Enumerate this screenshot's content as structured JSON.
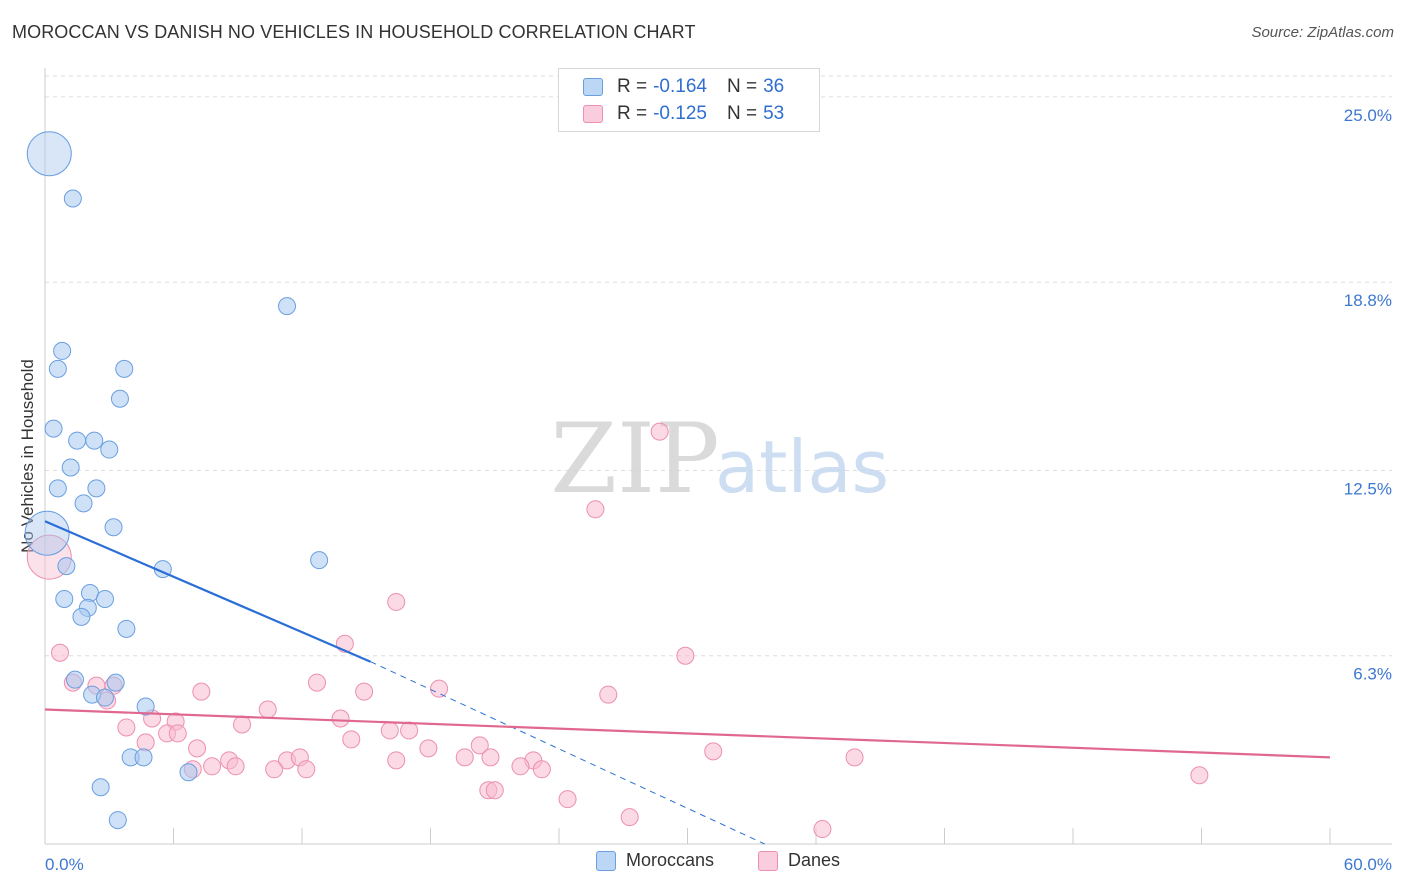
{
  "title": "MOROCCAN VS DANISH NO VEHICLES IN HOUSEHOLD CORRELATION CHART",
  "source": "Source: ZipAtlas.com",
  "watermark": {
    "zip": "ZIP",
    "atlas": "atlas"
  },
  "legend_top": {
    "series": [
      {
        "r_label": "R =",
        "r_value": "-0.164",
        "n_label": "N =",
        "n_value": "36"
      },
      {
        "r_label": "R =",
        "r_value": "-0.125",
        "n_label": "N =",
        "n_value": "53"
      }
    ]
  },
  "legend_bottom": {
    "items": [
      "Moroccans",
      "Danes"
    ]
  },
  "colors": {
    "moroccans_fill": "#a8c8f0",
    "moroccans_stroke": "#6a9fe0",
    "moroccans_line": "#2b6fd6",
    "danes_fill": "#f7bcd0",
    "danes_stroke": "#ec8fb0",
    "danes_line": "#e06890",
    "tick_label": "#3d78d0",
    "grid": "#dddddd"
  },
  "chart_data": {
    "type": "scatter",
    "title": "MOROCCAN VS DANISH NO VEHICLES IN HOUSEHOLD CORRELATION CHART",
    "xlabel": "",
    "ylabel": "No Vehicles in Household",
    "xlim": [
      0,
      60
    ],
    "ylim": [
      0,
      25.7
    ],
    "x_tick_labels": [
      "0.0%",
      "60.0%"
    ],
    "y_ticks": [
      6.3,
      12.5,
      18.8,
      25.0
    ],
    "y_tick_labels": [
      "6.3%",
      "12.5%",
      "18.8%",
      "25.0%"
    ],
    "series": [
      {
        "name": "Moroccans",
        "R": -0.164,
        "N": 36,
        "points": [
          [
            0.2,
            23.1
          ],
          [
            1.3,
            21.6
          ],
          [
            11.3,
            18.0
          ],
          [
            0.8,
            16.5
          ],
          [
            0.6,
            15.9
          ],
          [
            3.7,
            15.9
          ],
          [
            3.5,
            14.9
          ],
          [
            0.4,
            13.9
          ],
          [
            1.5,
            13.5
          ],
          [
            2.3,
            13.5
          ],
          [
            3.0,
            13.2
          ],
          [
            1.2,
            12.6
          ],
          [
            0.6,
            11.9
          ],
          [
            2.4,
            11.9
          ],
          [
            1.8,
            11.4
          ],
          [
            3.2,
            10.6
          ],
          [
            0.1,
            10.4
          ],
          [
            12.8,
            9.5
          ],
          [
            1.0,
            9.3
          ],
          [
            5.5,
            9.2
          ],
          [
            2.1,
            8.4
          ],
          [
            2.8,
            8.2
          ],
          [
            0.9,
            8.2
          ],
          [
            2.0,
            7.9
          ],
          [
            1.7,
            7.6
          ],
          [
            3.8,
            7.2
          ],
          [
            1.4,
            5.5
          ],
          [
            3.3,
            5.4
          ],
          [
            2.2,
            5.0
          ],
          [
            2.8,
            4.9
          ],
          [
            4.7,
            4.6
          ],
          [
            4.0,
            2.9
          ],
          [
            4.6,
            2.9
          ],
          [
            6.7,
            2.4
          ],
          [
            2.6,
            1.9
          ],
          [
            3.4,
            0.8
          ]
        ]
      },
      {
        "name": "Danes",
        "R": -0.125,
        "N": 53,
        "points": [
          [
            0.2,
            9.6
          ],
          [
            0.7,
            6.4
          ],
          [
            1.3,
            5.4
          ],
          [
            2.4,
            5.3
          ],
          [
            3.2,
            5.3
          ],
          [
            2.9,
            4.8
          ],
          [
            7.3,
            5.1
          ],
          [
            12.7,
            5.4
          ],
          [
            14.9,
            5.1
          ],
          [
            18.4,
            5.2
          ],
          [
            26.3,
            5.0
          ],
          [
            10.4,
            4.5
          ],
          [
            5.0,
            4.2
          ],
          [
            6.1,
            4.1
          ],
          [
            13.8,
            4.2
          ],
          [
            3.8,
            3.9
          ],
          [
            9.2,
            4.0
          ],
          [
            5.7,
            3.7
          ],
          [
            6.2,
            3.7
          ],
          [
            16.1,
            3.8
          ],
          [
            17.0,
            3.8
          ],
          [
            4.7,
            3.4
          ],
          [
            14.3,
            3.5
          ],
          [
            7.1,
            3.2
          ],
          [
            17.9,
            3.2
          ],
          [
            20.3,
            3.3
          ],
          [
            31.2,
            3.1
          ],
          [
            8.6,
            2.8
          ],
          [
            11.3,
            2.8
          ],
          [
            11.9,
            2.9
          ],
          [
            16.4,
            2.8
          ],
          [
            19.6,
            2.9
          ],
          [
            20.8,
            2.9
          ],
          [
            22.8,
            2.8
          ],
          [
            37.8,
            2.9
          ],
          [
            6.9,
            2.5
          ],
          [
            7.8,
            2.6
          ],
          [
            8.9,
            2.6
          ],
          [
            10.7,
            2.5
          ],
          [
            12.2,
            2.5
          ],
          [
            22.2,
            2.6
          ],
          [
            23.2,
            2.5
          ],
          [
            53.9,
            2.3
          ],
          [
            20.7,
            1.8
          ],
          [
            21.0,
            1.8
          ],
          [
            24.4,
            1.5
          ],
          [
            27.3,
            0.9
          ],
          [
            36.3,
            0.5
          ],
          [
            14.0,
            6.7
          ],
          [
            16.4,
            8.1
          ],
          [
            25.7,
            11.2
          ],
          [
            28.7,
            13.8
          ],
          [
            29.9,
            6.3
          ]
        ]
      }
    ],
    "trend_lines": [
      {
        "series": "Moroccans",
        "solid": {
          "x": [
            0,
            15.2
          ],
          "y": [
            10.8,
            6.1
          ]
        },
        "dashed": {
          "x": [
            15.2,
            33.6
          ],
          "y": [
            6.1,
            0.0
          ]
        }
      },
      {
        "series": "Danes",
        "solid": {
          "x": [
            0,
            60
          ],
          "y": [
            4.5,
            2.9
          ]
        }
      }
    ]
  }
}
